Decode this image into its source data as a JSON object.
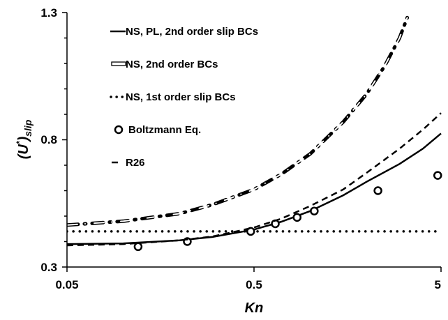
{
  "chart_data": {
    "type": "line",
    "x_scale": "log",
    "xlim": [
      0.05,
      5
    ],
    "ylim": [
      0.3,
      1.3
    ],
    "x_ticks": [
      "0.05",
      "0.5",
      "5"
    ],
    "y_ticks": [
      "0.3",
      "0.8",
      "1.3"
    ],
    "xlabel": "Kn",
    "ylabel_main": "(U",
    "ylabel_sup": "*",
    "ylabel_close": ")",
    "ylabel_sub": "slip",
    "grid": false,
    "legend_position": "top-left",
    "series": [
      {
        "name": "NS, PL, 2nd order slip BCs",
        "style": "solid",
        "color": "#000000",
        "x": [
          0.05,
          0.1,
          0.2,
          0.3,
          0.5,
          0.7,
          1.0,
          1.5,
          2.0,
          3.0,
          4.0,
          5.0
        ],
        "y": [
          0.39,
          0.393,
          0.405,
          0.418,
          0.447,
          0.478,
          0.52,
          0.582,
          0.635,
          0.705,
          0.765,
          0.825
        ]
      },
      {
        "name": "NS, 2nd order BCs",
        "style": "dash-dot",
        "color": "#000000",
        "x": [
          0.05,
          0.1,
          0.2,
          0.3,
          0.5,
          0.7,
          1.0,
          1.5,
          2.0,
          2.5,
          3.0,
          3.3
        ],
        "y": [
          0.465,
          0.48,
          0.51,
          0.545,
          0.605,
          0.665,
          0.745,
          0.87,
          0.98,
          1.09,
          1.2,
          1.28
        ]
      },
      {
        "name": "NS, 1st order slip BCs",
        "style": "dotted",
        "color": "#000000",
        "x": [
          0.05,
          0.1,
          0.5,
          1.0,
          2.0,
          5.0
        ],
        "y": [
          0.44,
          0.44,
          0.44,
          0.44,
          0.44,
          0.44
        ]
      },
      {
        "name": "Boltzmann Eq.",
        "style": "circle",
        "color": "#000000",
        "x": [
          0.12,
          0.22,
          0.48,
          0.65,
          0.85,
          1.05,
          2.3,
          4.8
        ],
        "y": [
          0.38,
          0.4,
          0.44,
          0.47,
          0.495,
          0.52,
          0.6,
          0.66
        ]
      },
      {
        "name": "R26",
        "style": "dashed",
        "color": "#000000",
        "x": [
          0.05,
          0.1,
          0.2,
          0.3,
          0.5,
          0.7,
          1.0,
          1.5,
          2.0,
          3.0,
          4.0,
          5.0
        ],
        "y": [
          0.385,
          0.39,
          0.405,
          0.42,
          0.455,
          0.49,
          0.54,
          0.605,
          0.67,
          0.765,
          0.84,
          0.905
        ]
      }
    ]
  }
}
